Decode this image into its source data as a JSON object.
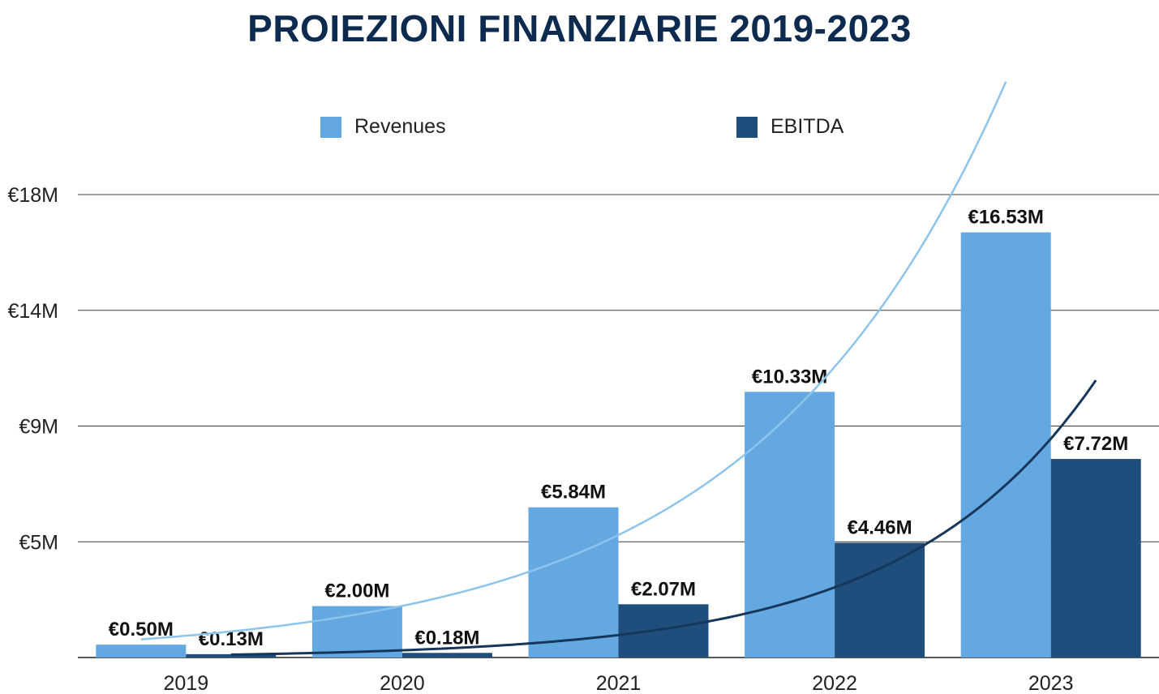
{
  "title": "PROIEZIONI FINANZIARIE 2019-2023",
  "chart_data": {
    "type": "bar",
    "title": "PROIEZIONI FINANZIARIE 2019-2023",
    "categories": [
      "2019",
      "2020",
      "2021",
      "2022",
      "2023"
    ],
    "series": [
      {
        "name": "Revenues",
        "color": "#64a8e2",
        "trend_color": "#8cc4ec",
        "values": [
          0.5,
          2.0,
          5.84,
          10.33,
          16.53
        ],
        "labels": [
          "€0.50M",
          "€2.00M",
          "€5.84M",
          "€10.33M",
          "€16.53M"
        ]
      },
      {
        "name": "EBITDA",
        "color": "#1f4e7c",
        "trend_color": "#16375a",
        "values": [
          0.13,
          0.18,
          2.07,
          4.46,
          7.72
        ],
        "labels": [
          "€0.13M",
          "€0.18M",
          "€2.07M",
          "€4.46M",
          "€7.72M"
        ]
      }
    ],
    "y_ticks": [
      0,
      4.5,
      9,
      13.5,
      18
    ],
    "y_tick_labels": [
      "",
      "€5M",
      "€9M",
      "€14M",
      "€18M"
    ],
    "ylim": [
      0,
      18
    ],
    "grid": true,
    "legend": "top-center",
    "trendlines": true
  }
}
